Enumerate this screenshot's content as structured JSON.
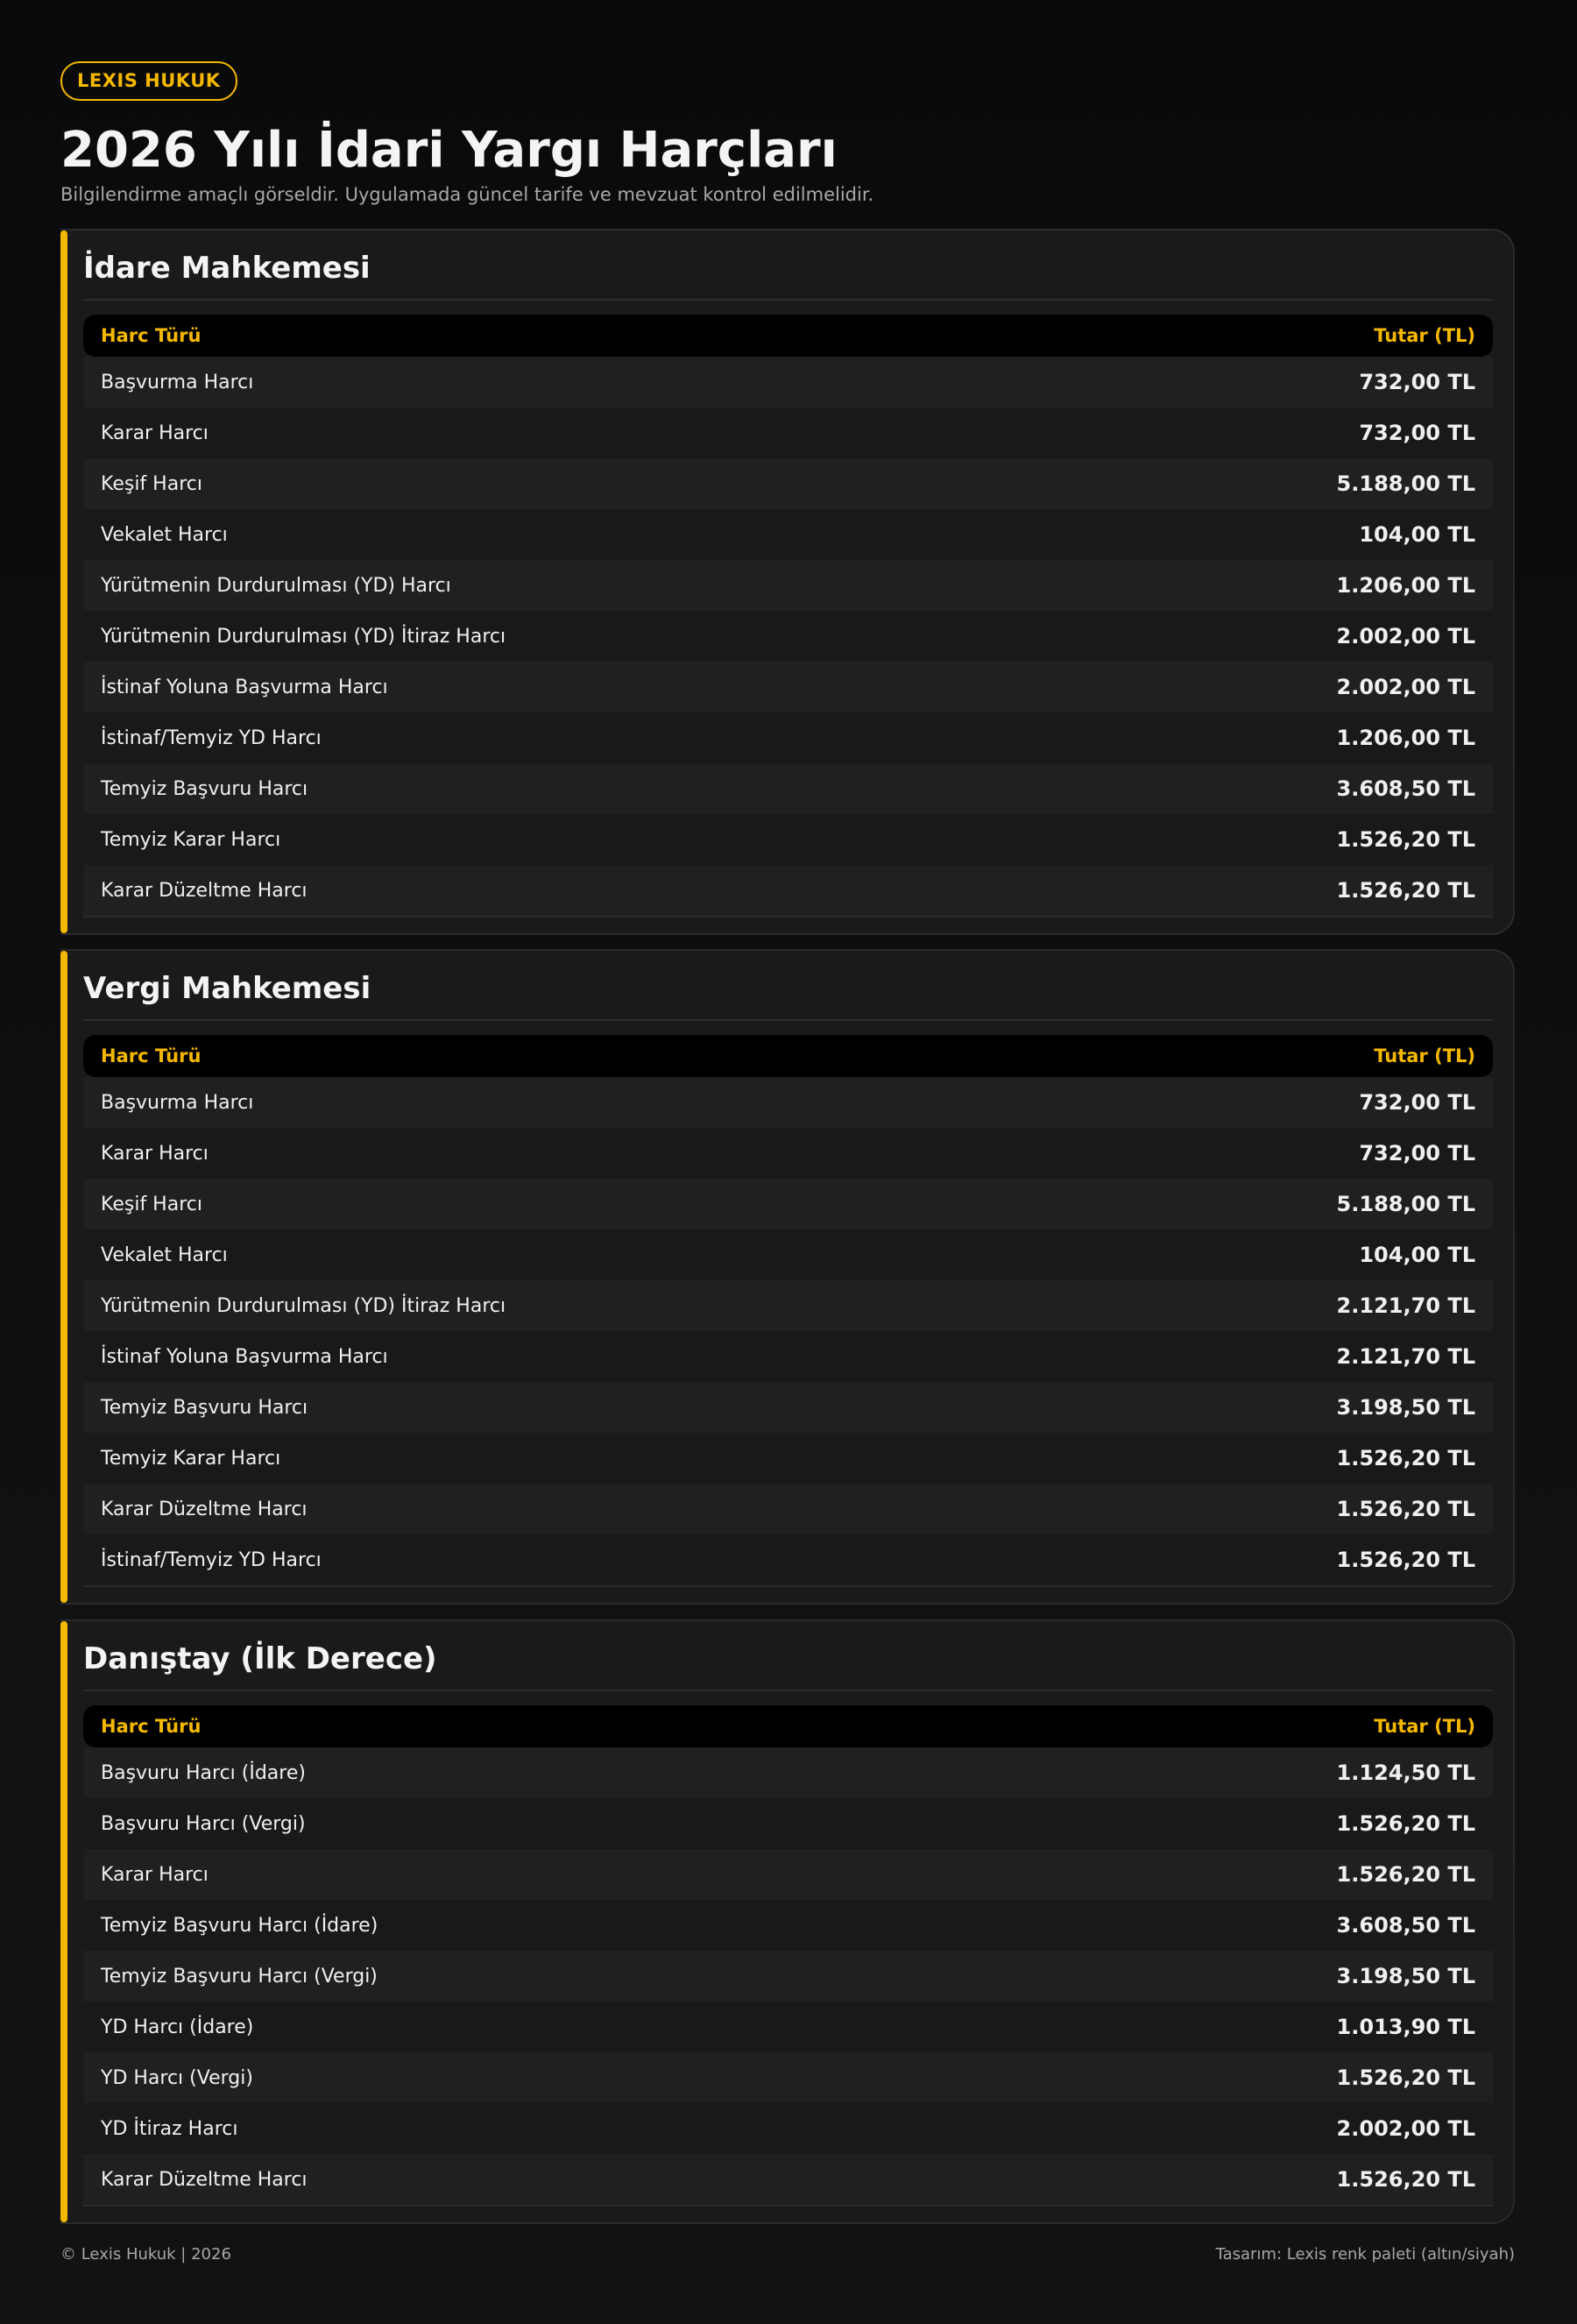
{
  "brand_badge": "LEXIS HUKUK",
  "title": "2026 Yılı İdari Yargı Harçları",
  "subtitle": "Bilgilendirme amaçlı görseldir. Uygulamada güncel tarife ve mevzuat kontrol edilmelidir.",
  "colors": {
    "accent": "#f5b800",
    "background": "#0b0b0b",
    "card": "#1a1a1a"
  },
  "sections": [
    {
      "title": "İdare Mahkemesi",
      "col_type": "Harc Türü",
      "col_amount": "Tutar (TL)",
      "rows": [
        [
          "Başvurma Harcı",
          "732,00 TL"
        ],
        [
          "Karar Harcı",
          "732,00 TL"
        ],
        [
          "Keşif Harcı",
          "5.188,00 TL"
        ],
        [
          "Vekalet Harcı",
          "104,00 TL"
        ],
        [
          "Yürütmenin Durdurulması (YD) Harcı",
          "1.206,00 TL"
        ],
        [
          "Yürütmenin Durdurulması (YD) İtiraz Harcı",
          "2.002,00 TL"
        ],
        [
          "İstinaf Yoluna Başvurma Harcı",
          "2.002,00 TL"
        ],
        [
          "İstinaf/Temyiz YD Harcı",
          "1.206,00 TL"
        ],
        [
          "Temyiz Başvuru Harcı",
          "3.608,50 TL"
        ],
        [
          "Temyiz Karar Harcı",
          "1.526,20 TL"
        ],
        [
          "Karar Düzeltme Harcı",
          "1.526,20 TL"
        ]
      ]
    },
    {
      "title": "Vergi Mahkemesi",
      "col_type": "Harc Türü",
      "col_amount": "Tutar (TL)",
      "rows": [
        [
          "Başvurma Harcı",
          "732,00 TL"
        ],
        [
          "Karar Harcı",
          "732,00 TL"
        ],
        [
          "Keşif Harcı",
          "5.188,00 TL"
        ],
        [
          "Vekalet Harcı",
          "104,00 TL"
        ],
        [
          "Yürütmenin Durdurulması (YD) İtiraz Harcı",
          "2.121,70 TL"
        ],
        [
          "İstinaf Yoluna Başvurma Harcı",
          "2.121,70 TL"
        ],
        [
          "Temyiz Başvuru Harcı",
          "3.198,50 TL"
        ],
        [
          "Temyiz Karar Harcı",
          "1.526,20 TL"
        ],
        [
          "Karar Düzeltme Harcı",
          "1.526,20 TL"
        ],
        [
          "İstinaf/Temyiz YD Harcı",
          "1.526,20 TL"
        ]
      ]
    },
    {
      "title": "Danıştay (İlk Derece)",
      "col_type": "Harc Türü",
      "col_amount": "Tutar (TL)",
      "rows": [
        [
          "Başvuru Harcı (İdare)",
          "1.124,50 TL"
        ],
        [
          "Başvuru Harcı (Vergi)",
          "1.526,20 TL"
        ],
        [
          "Karar Harcı",
          "1.526,20 TL"
        ],
        [
          "Temyiz Başvuru Harcı (İdare)",
          "3.608,50 TL"
        ],
        [
          "Temyiz Başvuru Harcı (Vergi)",
          "3.198,50 TL"
        ],
        [
          "YD Harcı (İdare)",
          "1.013,90 TL"
        ],
        [
          "YD Harcı (Vergi)",
          "1.526,20 TL"
        ],
        [
          "YD İtiraz Harcı",
          "2.002,00 TL"
        ],
        [
          "Karar Düzeltme Harcı",
          "1.526,20 TL"
        ]
      ]
    }
  ],
  "footer": {
    "left": "© Lexis Hukuk | 2026",
    "right": "Tasarım: Lexis renk paleti (altın/siyah)"
  }
}
